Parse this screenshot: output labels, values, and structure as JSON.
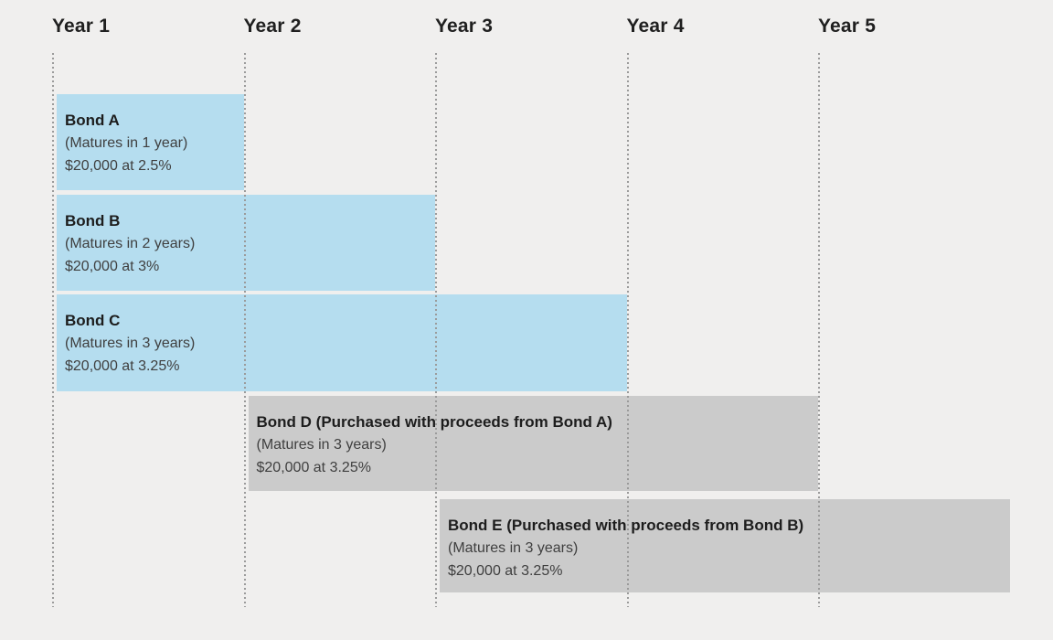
{
  "background_color": "#f0efee",
  "chart_data": {
    "type": "gantt",
    "description": "Bond ladder timeline showing initial bonds and bonds purchased with maturity proceeds",
    "x_axis": {
      "ticks": [
        "Year 1",
        "Year 2",
        "Year 3",
        "Year 4",
        "Year 5"
      ],
      "unit": "year",
      "range": [
        1,
        6
      ],
      "gridlines": "dotted-vertical"
    },
    "colors": {
      "background": "#f0efee",
      "initial_bond": "#b5ddef",
      "reinvested_bond": "#cbcbcb",
      "gridline": "#9b9b9b",
      "tick_label": "#1f1f1f",
      "bar_title": "#1d1d1d",
      "bar_subtext": "#3f3f3f"
    },
    "bars": [
      {
        "title": "Bond A",
        "maturity": "(Matures in 1 year)",
        "amount": "$20,000 at 2.5%",
        "start_year": 1,
        "end_year": 2,
        "duration_years": 1,
        "category": "initial_bond"
      },
      {
        "title": "Bond B",
        "maturity": "(Matures in 2 years)",
        "amount": "$20,000 at 3%",
        "start_year": 1,
        "end_year": 3,
        "duration_years": 2,
        "category": "initial_bond"
      },
      {
        "title": "Bond C",
        "maturity": "(Matures in 3 years)",
        "amount": "$20,000 at 3.25%",
        "start_year": 1,
        "end_year": 4,
        "duration_years": 3,
        "category": "initial_bond"
      },
      {
        "title": "Bond D (Purchased with proceeds from Bond A)",
        "maturity": "(Matures in 3 years)",
        "amount": "$20,000 at 3.25%",
        "start_year": 2,
        "end_year": 5,
        "duration_years": 3,
        "category": "reinvested_bond"
      },
      {
        "title": "Bond E (Purchased with proceeds from Bond B)",
        "maturity": "(Matures in 3 years)",
        "amount": "$20,000 at 3.25%",
        "start_year": 3,
        "end_year": 6,
        "duration_years": 3,
        "category": "reinvested_bond"
      }
    ]
  }
}
